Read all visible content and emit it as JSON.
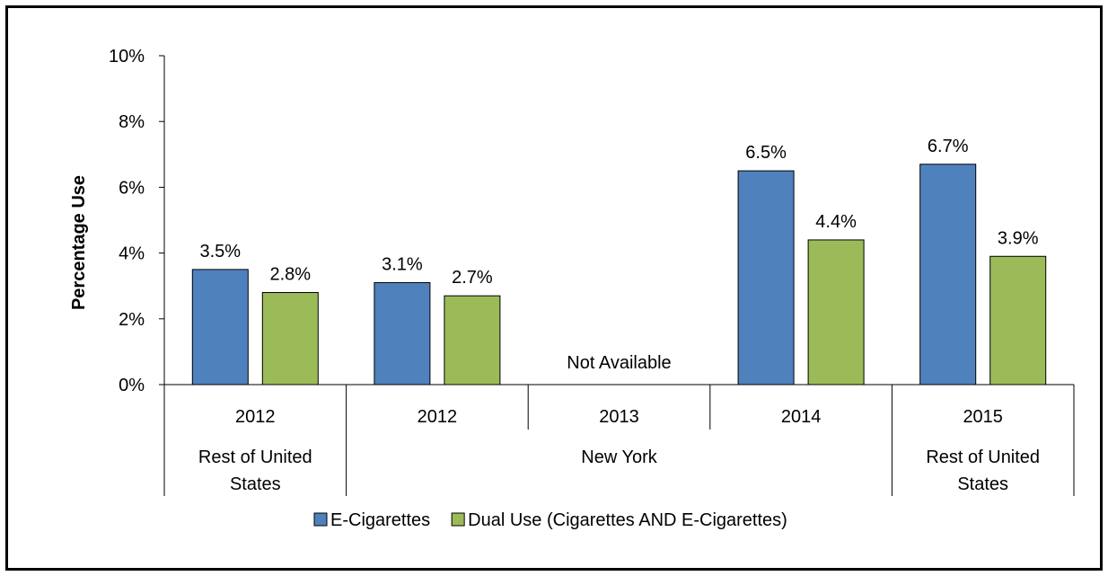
{
  "chart_data": {
    "type": "bar",
    "title": "",
    "ylabel": "Percentage Use",
    "ylim": [
      0,
      10
    ],
    "ytick_values": [
      0,
      2,
      4,
      6,
      8,
      10
    ],
    "ytick_labels": [
      "0%",
      "2%",
      "4%",
      "6%",
      "8%",
      "10%"
    ],
    "categories": [
      "2012",
      "2012",
      "2013",
      "2014",
      "2015"
    ],
    "groups": [
      {
        "label": "Rest of United States",
        "span": [
          0,
          1
        ]
      },
      {
        "label": "New York",
        "span": [
          1,
          4
        ]
      },
      {
        "label": "Rest of United States",
        "span": [
          4,
          5
        ]
      }
    ],
    "series": [
      {
        "name": "E-Cigarettes",
        "color": "#4F81BD",
        "values": [
          3.5,
          3.1,
          null,
          6.5,
          6.7
        ],
        "labels": [
          "3.5%",
          "3.1%",
          "",
          "6.5%",
          "6.7%"
        ]
      },
      {
        "name": "Dual Use (Cigarettes AND E-Cigarettes)",
        "color": "#9BBB59",
        "values": [
          2.8,
          2.7,
          null,
          4.4,
          3.9
        ],
        "labels": [
          "2.8%",
          "2.7%",
          "",
          "4.4%",
          "3.9%"
        ]
      }
    ],
    "annotations": [
      {
        "category_index": 2,
        "text": "Not Available"
      }
    ],
    "legend": "bottom",
    "grid": false
  }
}
